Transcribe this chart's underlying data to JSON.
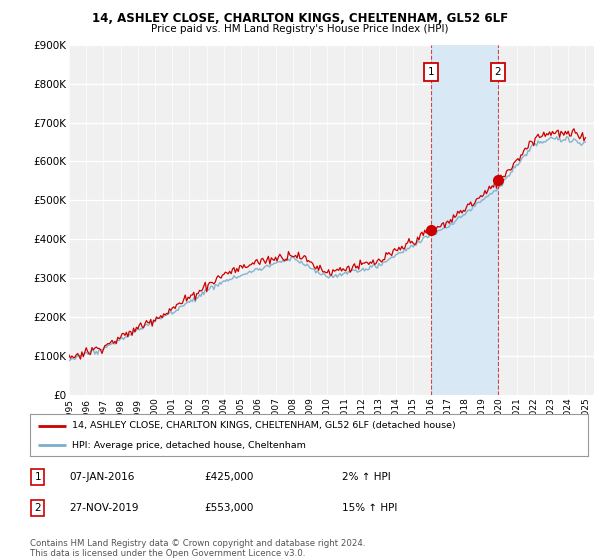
{
  "title1": "14, ASHLEY CLOSE, CHARLTON KINGS, CHELTENHAM, GL52 6LF",
  "title2": "Price paid vs. HM Land Registry's House Price Index (HPI)",
  "ylim": [
    0,
    900000
  ],
  "yticks": [
    0,
    100000,
    200000,
    300000,
    400000,
    500000,
    600000,
    700000,
    800000,
    900000
  ],
  "ytick_labels": [
    "£0",
    "£100K",
    "£200K",
    "£300K",
    "£400K",
    "£500K",
    "£600K",
    "£700K",
    "£800K",
    "£900K"
  ],
  "background_color": "#ffffff",
  "plot_bg_color": "#f0f0f0",
  "grid_color": "#ffffff",
  "red_line_color": "#cc0000",
  "blue_line_color": "#7aaecc",
  "shade_color": "#d8e8f4",
  "sale1_price": 425000,
  "sale1_x": 2016.04,
  "sale2_price": 553000,
  "sale2_x": 2019.92,
  "legend_line1": "14, ASHLEY CLOSE, CHARLTON KINGS, CHELTENHAM, GL52 6LF (detached house)",
  "legend_line2": "HPI: Average price, detached house, Cheltenham",
  "footnote": "Contains HM Land Registry data © Crown copyright and database right 2024.\nThis data is licensed under the Open Government Licence v3.0.",
  "xmin": 1995,
  "xmax": 2025.5
}
